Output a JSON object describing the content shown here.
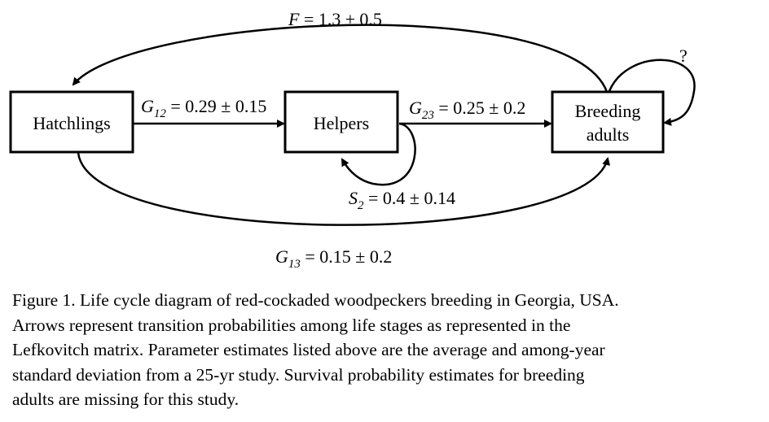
{
  "nodes": {
    "hatchlings": "Hatchlings",
    "helpers": "Helpers",
    "breeding_line1": "Breeding",
    "breeding_line2": "adults"
  },
  "edges": {
    "fecundity": {
      "symbol": "F",
      "value": " = 1.3 ± 0.5"
    },
    "g12": {
      "symbol": "G",
      "sub": "12",
      "value": " = 0.29 ± 0.15"
    },
    "g23": {
      "symbol": "G",
      "sub": "23",
      "value": " = 0.25 ± 0.2"
    },
    "s2": {
      "symbol": "S",
      "sub": "2",
      "value": " = 0.4 ± 0.14"
    },
    "g13": {
      "symbol": "G",
      "sub": "13",
      "value": " = 0.15 ± 0.2"
    },
    "adult_survival": "?"
  },
  "caption": [
    "Figure 1. Life cycle diagram of red-cockaded woodpeckers breeding in Georgia, USA.",
    "Arrows represent transition probabilities among life stages as represented in the",
    "Lefkovitch matrix. Parameter estimates listed above are the average and among-year",
    "standard deviation from a 25-yr study. Survival probability estimates for breeding",
    "adults are missing for this study."
  ]
}
